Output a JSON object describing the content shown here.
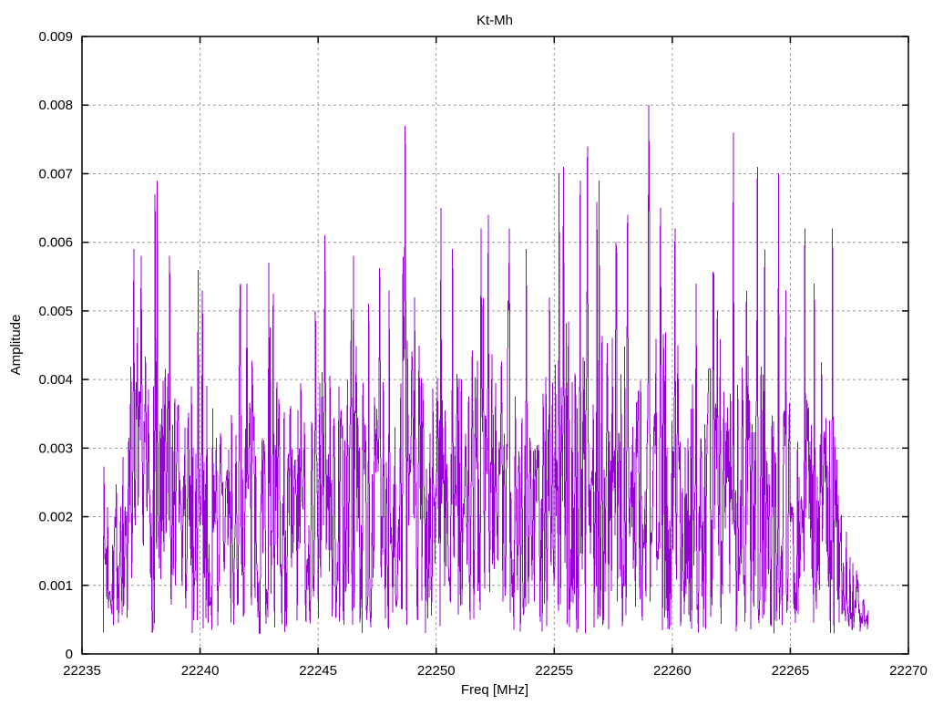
{
  "chart_data": {
    "type": "line",
    "title": "Kt-Mh",
    "xlabel": "Freq [MHz]",
    "ylabel": "Amplitude",
    "xlim": [
      22235,
      22270
    ],
    "ylim": [
      0,
      0.009
    ],
    "x_tick_values": [
      22235,
      22240,
      22245,
      22250,
      22255,
      22260,
      22265,
      22270
    ],
    "x_tick_labels": [
      "22235",
      "22240",
      "22245",
      "22250",
      "22255",
      "22260",
      "22265",
      "22270"
    ],
    "y_tick_values": [
      0,
      0.001,
      0.002,
      0.003,
      0.004,
      0.005,
      0.006,
      0.007,
      0.008,
      0.009
    ],
    "y_tick_labels": [
      "0",
      "0.001",
      "0.002",
      "0.003",
      "0.004",
      "0.005",
      "0.006",
      "0.007",
      "0.008",
      "0.009"
    ],
    "grid": true,
    "legend": "none",
    "colors": {
      "line": "#9400d3",
      "grid": "#9c9c9c",
      "border": "#000000",
      "text": "#000000",
      "background": "#ffffff"
    },
    "grid_dash": "3,3",
    "data_x_range": [
      22235.9,
      22268.3
    ],
    "noise_floor": 0.0003,
    "n_points": 1050,
    "seed": 7,
    "envelope": [
      [
        22236.0,
        0.0028
      ],
      [
        22236.6,
        0.0031
      ],
      [
        22237.2,
        0.0034
      ],
      [
        22237.8,
        0.0046
      ],
      [
        22238.4,
        0.0044
      ],
      [
        22239.2,
        0.0036
      ],
      [
        22239.8,
        0.0042
      ],
      [
        22240.6,
        0.0038
      ],
      [
        22241.4,
        0.0037
      ],
      [
        22242.2,
        0.0043
      ],
      [
        22243.0,
        0.0041
      ],
      [
        22244.0,
        0.0038
      ],
      [
        22245.0,
        0.0045
      ],
      [
        22246.0,
        0.0041
      ],
      [
        22247.0,
        0.004
      ],
      [
        22248.0,
        0.0043
      ],
      [
        22249.0,
        0.0047
      ],
      [
        22250.0,
        0.0044
      ],
      [
        22251.0,
        0.0044
      ],
      [
        22252.0,
        0.0046
      ],
      [
        22253.0,
        0.0044
      ],
      [
        22254.0,
        0.0042
      ],
      [
        22255.0,
        0.0047
      ],
      [
        22256.0,
        0.005
      ],
      [
        22257.0,
        0.0047
      ],
      [
        22258.0,
        0.0046
      ],
      [
        22259.0,
        0.0047
      ],
      [
        22260.0,
        0.0047
      ],
      [
        22261.0,
        0.0043
      ],
      [
        22262.0,
        0.0041
      ],
      [
        22263.0,
        0.0044
      ],
      [
        22264.0,
        0.0042
      ],
      [
        22265.0,
        0.004
      ],
      [
        22266.0,
        0.0038
      ],
      [
        22266.8,
        0.0034
      ],
      [
        22267.2,
        0.0026
      ],
      [
        22267.6,
        0.0015
      ],
      [
        22268.0,
        0.001
      ],
      [
        22268.3,
        0.0008
      ]
    ],
    "peaks": [
      [
        22237.2,
        0.0059
      ],
      [
        22237.5,
        0.0058
      ],
      [
        22238.1,
        0.0067
      ],
      [
        22238.2,
        0.0069
      ],
      [
        22238.7,
        0.0058
      ],
      [
        22239.9,
        0.0056
      ],
      [
        22240.1,
        0.0053
      ],
      [
        22241.7,
        0.0054
      ],
      [
        22242.0,
        0.0054
      ],
      [
        22242.9,
        0.0057
      ],
      [
        22244.9,
        0.005
      ],
      [
        22245.3,
        0.0061
      ],
      [
        22246.5,
        0.0058
      ],
      [
        22248.0,
        0.0053
      ],
      [
        22248.7,
        0.0077
      ],
      [
        22249.1,
        0.0052
      ],
      [
        22250.2,
        0.0065
      ],
      [
        22250.7,
        0.0059
      ],
      [
        22251.9,
        0.0062
      ],
      [
        22252.2,
        0.0064
      ],
      [
        22253.1,
        0.0062
      ],
      [
        22253.8,
        0.0059
      ],
      [
        22254.8,
        0.0052
      ],
      [
        22255.2,
        0.007
      ],
      [
        22255.4,
        0.0071
      ],
      [
        22256.1,
        0.0069
      ],
      [
        22256.4,
        0.0074
      ],
      [
        22256.9,
        0.0069
      ],
      [
        22257.6,
        0.006
      ],
      [
        22258.1,
        0.0064
      ],
      [
        22259.0,
        0.008
      ],
      [
        22259.5,
        0.0065
      ],
      [
        22260.1,
        0.0062
      ],
      [
        22261.0,
        0.0054
      ],
      [
        22261.9,
        0.005
      ],
      [
        22262.6,
        0.0076
      ],
      [
        22263.6,
        0.0071
      ],
      [
        22264.5,
        0.007
      ],
      [
        22264.8,
        0.0053
      ],
      [
        22265.6,
        0.0062
      ],
      [
        22266.0,
        0.0054
      ],
      [
        22266.8,
        0.0062
      ]
    ]
  }
}
